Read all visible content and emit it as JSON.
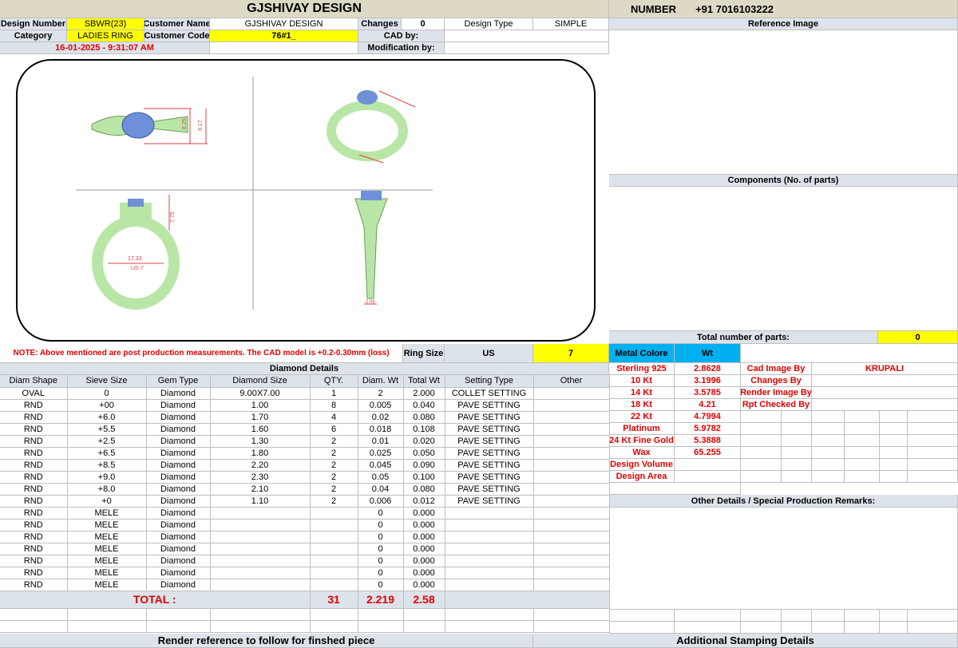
{
  "header": {
    "title": "GJSHIVAY DESIGN",
    "number_label": "NUMBER",
    "number_value": "+91 7016103222",
    "design_number_label": "Design Number",
    "design_number": "SBWR(23)",
    "customer_name_label": "Customer Name",
    "customer_name": "GJSHIVAY DESIGN",
    "changes_label": "Changes",
    "changes": "0",
    "design_type_label": "Design Type",
    "design_type": "SIMPLE",
    "category_label": "Category",
    "category": "LADIES RING",
    "customer_code_label": "Customer Code",
    "customer_code": "76#1_",
    "cad_by_label": "CAD by:",
    "date": "16-01-2025 - 9:31:07 AM",
    "modification_by_label": "Modification by:"
  },
  "right": {
    "reference_image": "Reference Image",
    "components": "Components (No. of parts)",
    "total_parts_label": "Total number of parts:",
    "total_parts": "0",
    "metal_colore": "Metal Colore",
    "wt": "Wt",
    "metals": [
      [
        "Sterling 925",
        "2.8628"
      ],
      [
        "10 Kt",
        "3.1996"
      ],
      [
        "14 Kt",
        "3.5785"
      ],
      [
        "18 Kt",
        "4.21"
      ],
      [
        "22 Kt",
        "4.7994"
      ],
      [
        "Platinum",
        "5.9782"
      ],
      [
        "24 Kt Fine Gold",
        "5.3888"
      ],
      [
        "Wax",
        "65.255"
      ],
      [
        "Design Volume",
        ""
      ],
      [
        "Design Area",
        ""
      ]
    ],
    "roles": [
      [
        "Cad Image By",
        "KRUPALI"
      ],
      [
        "Changes By",
        ""
      ],
      [
        "Render Image By",
        ""
      ],
      [
        "Rpt Checked By",
        ""
      ]
    ],
    "other_details": "Other Details / Special Production Remarks:",
    "additional_stamping": "Additional Stamping Details"
  },
  "note": "NOTE: Above mentioned are post production measurements. The CAD model is +0.2-0.30mm (loss)",
  "ring_size_label": "Ring Size",
  "ring_size_standard": "US",
  "ring_size": "7",
  "cad_dims": {
    "top_w": "8.25",
    "top_h": "9.17",
    "inner": "17.33",
    "us": "US-7",
    "height": "7.75",
    "side": "2.06"
  },
  "diamond": {
    "title": "Diamond Details",
    "columns": [
      "Diam Shape",
      "Sieve Size",
      "Gem Type",
      "Diamond Size",
      "QTY.",
      "Diam. Wt",
      "Total Wt",
      "Setting Type",
      "Other"
    ],
    "rows": [
      [
        "OVAL",
        "0",
        "Diamond",
        "9.00X7.00",
        "1",
        "2",
        "2.000",
        "COLLET SETTING",
        ""
      ],
      [
        "RND",
        "+00",
        "Diamond",
        "1.00",
        "8",
        "0.005",
        "0.040",
        "PAVE SETTING",
        ""
      ],
      [
        "RND",
        "+6.0",
        "Diamond",
        "1.70",
        "4",
        "0.02",
        "0.080",
        "PAVE SETTING",
        ""
      ],
      [
        "RND",
        "+5.5",
        "Diamond",
        "1.60",
        "6",
        "0.018",
        "0.108",
        "PAVE SETTING",
        ""
      ],
      [
        "RND",
        "+2.5",
        "Diamond",
        "1.30",
        "2",
        "0.01",
        "0.020",
        "PAVE SETTING",
        ""
      ],
      [
        "RND",
        "+6.5",
        "Diamond",
        "1.80",
        "2",
        "0.025",
        "0.050",
        "PAVE SETTING",
        ""
      ],
      [
        "RND",
        "+8.5",
        "Diamond",
        "2.20",
        "2",
        "0.045",
        "0.090",
        "PAVE SETTING",
        ""
      ],
      [
        "RND",
        "+9.0",
        "Diamond",
        "2.30",
        "2",
        "0.05",
        "0.100",
        "PAVE SETTING",
        ""
      ],
      [
        "RND",
        "+8.0",
        "Diamond",
        "2.10",
        "2",
        "0.04",
        "0.080",
        "PAVE SETTING",
        ""
      ],
      [
        "RND",
        "+0",
        "Diamond",
        "1.10",
        "2",
        "0.006",
        "0.012",
        "PAVE SETTING",
        ""
      ],
      [
        "RND",
        "MELE",
        "Diamond",
        "",
        "",
        "0",
        "0.000",
        "",
        ""
      ],
      [
        "RND",
        "MELE",
        "Diamond",
        "",
        "",
        "0",
        "0.000",
        "",
        ""
      ],
      [
        "RND",
        "MELE",
        "Diamond",
        "",
        "",
        "0",
        "0.000",
        "",
        ""
      ],
      [
        "RND",
        "MELE",
        "Diamond",
        "",
        "",
        "0",
        "0.000",
        "",
        ""
      ],
      [
        "RND",
        "MELE",
        "Diamond",
        "",
        "",
        "0",
        "0.000",
        "",
        ""
      ],
      [
        "RND",
        "MELE",
        "Diamond",
        "",
        "",
        "0",
        "0.000",
        "",
        ""
      ],
      [
        "RND",
        "MELE",
        "Diamond",
        "",
        "",
        "0",
        "0.000",
        "",
        ""
      ]
    ],
    "total_label": "TOTAL :",
    "total_qty": "31",
    "total_diam_wt": "2.219",
    "total_wt": "2.58"
  },
  "footer": {
    "render_reference": "Render reference to follow for finshed piece"
  }
}
